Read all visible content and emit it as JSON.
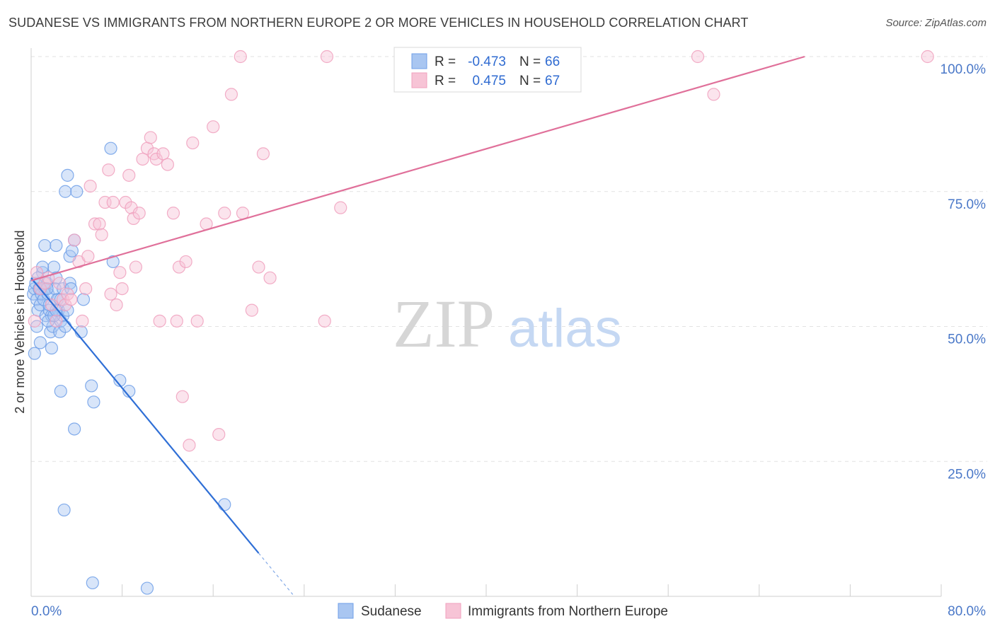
{
  "title": "SUDANESE VS IMMIGRANTS FROM NORTHERN EUROPE 2 OR MORE VEHICLES IN HOUSEHOLD CORRELATION CHART",
  "source": "Source: ZipAtlas.com",
  "watermark": {
    "zip": "ZIP",
    "atlas": "atlas"
  },
  "chart_data": {
    "type": "scatter",
    "xlabel": "",
    "ylabel": "2 or more Vehicles in Household",
    "xlim": [
      0,
      80
    ],
    "ylim": [
      0,
      100
    ],
    "x_tick_labels": [
      "0.0%",
      "80.0%"
    ],
    "y_ticks": [
      25,
      50,
      75,
      100
    ],
    "y_tick_labels": [
      "25.0%",
      "50.0%",
      "75.0%",
      "100.0%"
    ],
    "legend_inset": [
      {
        "r_label": "R =",
        "r_value": "-0.473",
        "n_label": "N =",
        "n_value": "66"
      },
      {
        "r_label": "R =",
        "r_value": "0.475",
        "n_label": "N =",
        "n_value": "67"
      }
    ],
    "series": [
      {
        "name": "Sudanese",
        "color": "#6f9fe8",
        "fill": "#a9c6f1",
        "line_color": "#2f6fd6",
        "trend": {
          "x0": 0,
          "y0": 59.0,
          "x1": 20.0,
          "y1": 8.0,
          "dash_to_x": 23.0
        },
        "points": [
          [
            0.2,
            56
          ],
          [
            0.3,
            57
          ],
          [
            0.4,
            58
          ],
          [
            0.5,
            55
          ],
          [
            0.6,
            53
          ],
          [
            0.7,
            57
          ],
          [
            0.8,
            54
          ],
          [
            0.9,
            56
          ],
          [
            1.0,
            60
          ],
          [
            1.1,
            55
          ],
          [
            1.2,
            57
          ],
          [
            1.3,
            52
          ],
          [
            1.4,
            58
          ],
          [
            1.5,
            56
          ],
          [
            1.6,
            53
          ],
          [
            1.7,
            49
          ],
          [
            1.8,
            52
          ],
          [
            1.9,
            50
          ],
          [
            2.0,
            61
          ],
          [
            2.1,
            57
          ],
          [
            2.2,
            59
          ],
          [
            2.3,
            55
          ],
          [
            2.4,
            53
          ],
          [
            2.5,
            49
          ],
          [
            2.6,
            51
          ],
          [
            2.8,
            52
          ],
          [
            3.0,
            50
          ],
          [
            3.2,
            53
          ],
          [
            3.4,
            63
          ],
          [
            0.5,
            50
          ],
          [
            0.8,
            47
          ],
          [
            0.3,
            45
          ],
          [
            1.0,
            61
          ],
          [
            1.5,
            51
          ],
          [
            1.2,
            65
          ],
          [
            1.8,
            46
          ],
          [
            2.0,
            52
          ],
          [
            2.2,
            65
          ],
          [
            2.6,
            55
          ],
          [
            2.8,
            57
          ],
          [
            3.0,
            75
          ],
          [
            3.2,
            78
          ],
          [
            3.4,
            58
          ],
          [
            3.6,
            64
          ],
          [
            3.8,
            66
          ],
          [
            3.5,
            57
          ],
          [
            4.0,
            75
          ],
          [
            4.4,
            49
          ],
          [
            4.6,
            55
          ],
          [
            2.6,
            38
          ],
          [
            5.3,
            39
          ],
          [
            5.5,
            36
          ],
          [
            3.8,
            31
          ],
          [
            7.0,
            83
          ],
          [
            7.2,
            62
          ],
          [
            7.8,
            40
          ],
          [
            8.6,
            38
          ],
          [
            2.9,
            16
          ],
          [
            17.0,
            17
          ],
          [
            5.4,
            2.5
          ],
          [
            10.2,
            1.5
          ],
          [
            0.8,
            57
          ],
          [
            1.4,
            57
          ],
          [
            2.2,
            53
          ],
          [
            1.6,
            54
          ],
          [
            0.6,
            59
          ]
        ]
      },
      {
        "name": "Immigrants from Northern Europe",
        "color": "#f0a0bd",
        "fill": "#f7c4d6",
        "line_color": "#e0709a",
        "trend": {
          "x0": 0,
          "y0": 58.5,
          "x1": 68.0,
          "y1": 100.0
        },
        "points": [
          [
            0.3,
            51
          ],
          [
            0.5,
            60
          ],
          [
            0.8,
            57
          ],
          [
            1.2,
            58
          ],
          [
            1.5,
            59
          ],
          [
            1.8,
            54
          ],
          [
            2.2,
            51
          ],
          [
            2.5,
            58
          ],
          [
            2.8,
            55
          ],
          [
            3.0,
            54
          ],
          [
            3.2,
            56
          ],
          [
            3.5,
            55
          ],
          [
            3.8,
            66
          ],
          [
            4.2,
            62
          ],
          [
            4.5,
            51
          ],
          [
            4.8,
            57
          ],
          [
            5.0,
            63
          ],
          [
            5.2,
            76
          ],
          [
            5.6,
            69
          ],
          [
            6.0,
            69
          ],
          [
            6.2,
            67
          ],
          [
            6.5,
            73
          ],
          [
            6.8,
            79
          ],
          [
            7.0,
            56
          ],
          [
            7.2,
            73
          ],
          [
            7.5,
            54
          ],
          [
            7.8,
            60
          ],
          [
            8.0,
            57
          ],
          [
            8.3,
            73
          ],
          [
            8.6,
            78
          ],
          [
            8.8,
            72
          ],
          [
            9.0,
            70
          ],
          [
            9.2,
            61
          ],
          [
            9.5,
            71
          ],
          [
            9.8,
            81
          ],
          [
            10.2,
            83
          ],
          [
            10.5,
            85
          ],
          [
            10.8,
            82
          ],
          [
            11.0,
            81
          ],
          [
            11.3,
            51
          ],
          [
            11.6,
            82
          ],
          [
            12.0,
            80
          ],
          [
            12.5,
            71
          ],
          [
            12.8,
            51
          ],
          [
            13.0,
            61
          ],
          [
            13.3,
            37
          ],
          [
            13.6,
            62
          ],
          [
            13.9,
            28
          ],
          [
            14.2,
            84
          ],
          [
            14.6,
            51
          ],
          [
            15.4,
            69
          ],
          [
            16.0,
            87
          ],
          [
            16.5,
            30
          ],
          [
            17.0,
            71
          ],
          [
            17.6,
            93
          ],
          [
            18.4,
            100
          ],
          [
            18.6,
            71
          ],
          [
            19.4,
            53
          ],
          [
            20.0,
            61
          ],
          [
            20.4,
            82
          ],
          [
            21.0,
            59
          ],
          [
            25.8,
            51
          ],
          [
            26.0,
            100
          ],
          [
            27.2,
            72
          ],
          [
            58.6,
            100
          ],
          [
            60.0,
            93
          ],
          [
            78.8,
            100
          ]
        ]
      }
    ]
  },
  "bottom_legend": [
    "Sudanese",
    "Immigrants from Northern Europe"
  ]
}
